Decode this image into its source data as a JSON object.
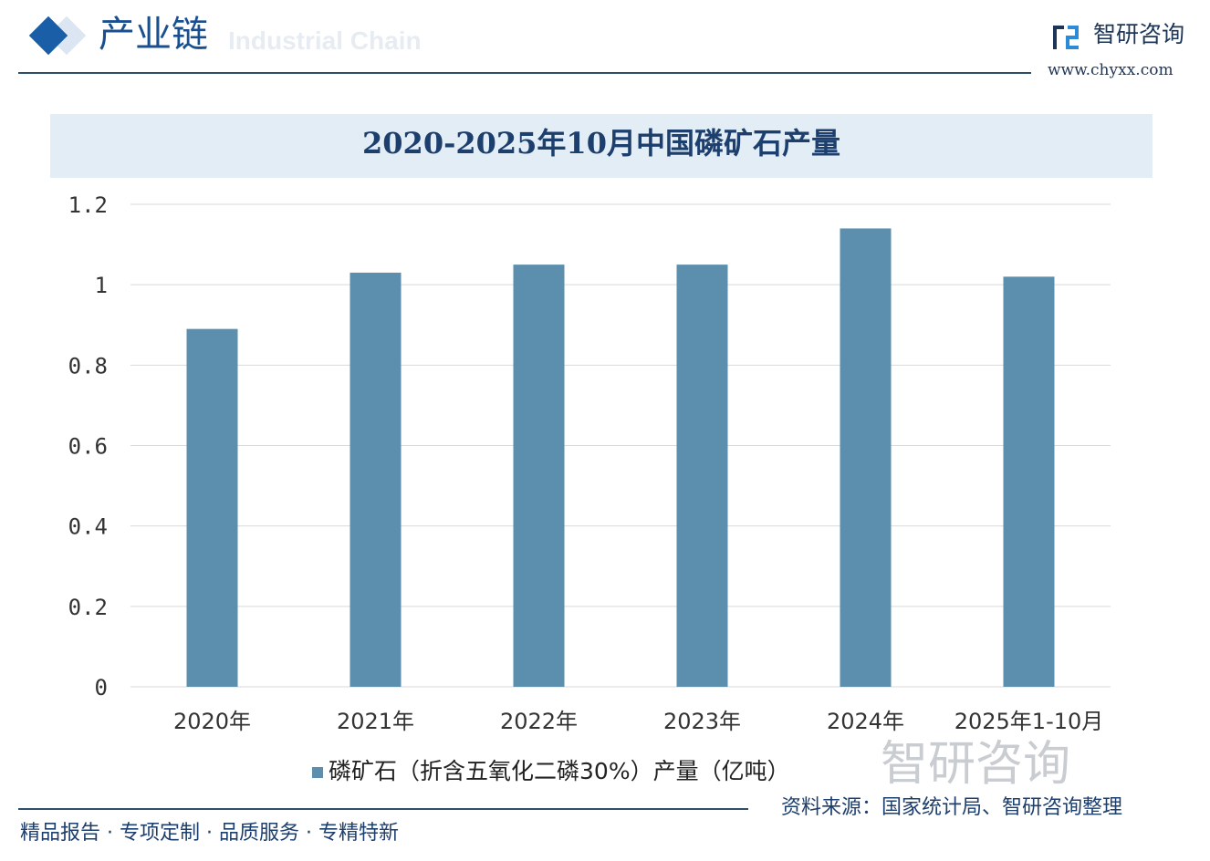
{
  "header": {
    "title": "产业链",
    "subtitle": "Industrial Chain",
    "brand": "智研咨询",
    "url": "www.chyxx.com"
  },
  "footer": {
    "source": "资料来源：国家统计局、智研咨询整理",
    "slogan": "精品报告 · 专项定制 · 品质服务 · 专精特新",
    "watermark": "智研咨询"
  },
  "colors": {
    "bar": "#5b8fad",
    "title": "#1d3f6e",
    "accent": "#1a5ea8"
  },
  "chart_data": {
    "type": "bar",
    "title": "2020-2025年10月中国磷矿石产量",
    "categories": [
      "2020年",
      "2021年",
      "2022年",
      "2023年",
      "2024年",
      "2025年1-10月"
    ],
    "series": [
      {
        "name": "磷矿石（折含五氧化二磷30%）产量（亿吨）",
        "values": [
          0.89,
          1.03,
          1.05,
          1.05,
          1.14,
          1.02
        ]
      }
    ],
    "ylim": [
      0,
      1.2
    ],
    "yticks": [
      "0",
      "0.2",
      "0.4",
      "0.6",
      "0.8",
      "1",
      "1.2"
    ],
    "grid": true,
    "legend": "bottom"
  }
}
